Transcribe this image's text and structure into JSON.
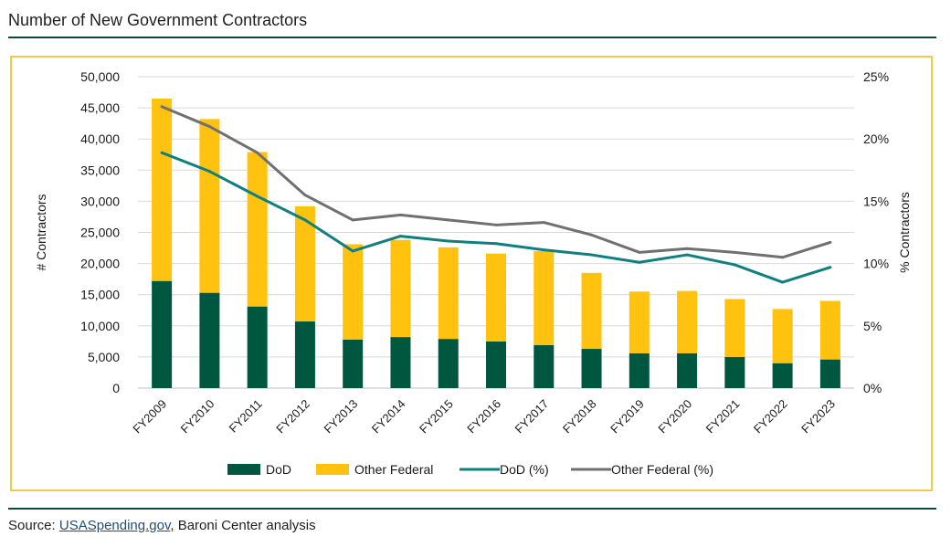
{
  "title": "Number of New Government Contractors",
  "source": {
    "prefix": "Source: ",
    "link": "USASpending.gov",
    "suffix": ", Baroni Center analysis"
  },
  "colors": {
    "dod": "#00573f",
    "other": "#ffc20e",
    "dod_pct": "#0f7f7f",
    "other_pct": "#707070",
    "frame": "#f2c94c"
  },
  "chart_data": {
    "type": "bar",
    "stacked": true,
    "categories": [
      "FY2009",
      "FY2010",
      "FY2011",
      "FY2012",
      "FY2013",
      "FY2014",
      "FY2015",
      "FY2016",
      "FY2017",
      "FY2018",
      "FY2019",
      "FY2020",
      "FY2021",
      "FY2022",
      "FY2023"
    ],
    "series": [
      {
        "name": "DoD",
        "type": "bar",
        "axis": "left",
        "values": [
          17200,
          15300,
          13100,
          10700,
          7800,
          8200,
          7900,
          7500,
          6900,
          6300,
          5600,
          5600,
          5000,
          4000,
          4600
        ]
      },
      {
        "name": "Other Federal",
        "type": "bar",
        "axis": "left",
        "values": [
          29300,
          27900,
          24800,
          18500,
          15300,
          15600,
          14700,
          14100,
          15100,
          12200,
          9900,
          10000,
          9300,
          8700,
          9400
        ]
      },
      {
        "name": "DoD (%)",
        "type": "line",
        "axis": "right",
        "values": [
          18.9,
          17.4,
          15.4,
          13.5,
          11.0,
          12.2,
          11.8,
          11.6,
          11.1,
          10.7,
          10.1,
          10.7,
          9.9,
          8.5,
          9.7
        ]
      },
      {
        "name": "Other Federal (%)",
        "type": "line",
        "axis": "right",
        "values": [
          22.6,
          21.0,
          18.9,
          15.5,
          13.5,
          13.9,
          13.5,
          13.1,
          13.3,
          12.3,
          10.9,
          11.2,
          10.9,
          10.5,
          11.7
        ]
      }
    ],
    "ylabel": "# Contractors",
    "y2label": "% Contractors",
    "ylim": [
      0,
      50000
    ],
    "y2lim": [
      0,
      25
    ],
    "yticks": [
      "0",
      "5,000",
      "10,000",
      "15,000",
      "20,000",
      "25,000",
      "30,000",
      "35,000",
      "40,000",
      "45,000",
      "50,000"
    ],
    "y2ticks": [
      "0%",
      "5%",
      "10%",
      "15%",
      "20%",
      "25%"
    ],
    "grid": true,
    "legend_position": "bottom"
  }
}
